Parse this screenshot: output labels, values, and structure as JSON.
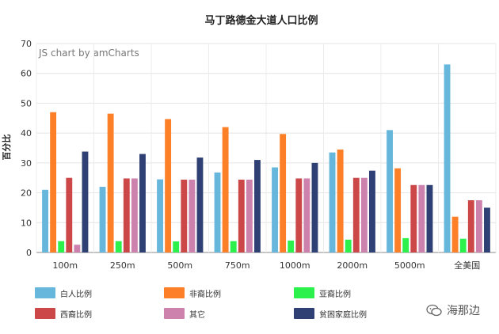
{
  "credit": "JS chart by amCharts",
  "watermark": "海那边",
  "chart_data": {
    "type": "bar",
    "title": "马丁路德金大道人口比例",
    "xlabel": "",
    "ylabel": "百分比",
    "ylim": [
      0,
      70
    ],
    "yticks": [
      0,
      10,
      20,
      30,
      40,
      50,
      60,
      70
    ],
    "grid": true,
    "legend_position": "bottom",
    "categories": [
      "100m",
      "250m",
      "500m",
      "750m",
      "1000m",
      "2000m",
      "5000m",
      "全美国"
    ],
    "series": [
      {
        "name": "白人比例",
        "color": "#67b7dc",
        "values": [
          21,
          22,
          24.5,
          26.8,
          28.5,
          33.5,
          41,
          63
        ]
      },
      {
        "name": "非裔比例",
        "color": "#fd7f28",
        "values": [
          47,
          46.5,
          44.7,
          42,
          39.7,
          34.5,
          28.2,
          12
        ]
      },
      {
        "name": "亚裔比例",
        "color": "#2cf04c",
        "values": [
          3.8,
          3.8,
          3.7,
          3.8,
          4,
          4.3,
          4.8,
          4.6
        ]
      },
      {
        "name": "西裔比例",
        "color": "#cc4748",
        "values": [
          25,
          24.8,
          24.4,
          24.4,
          24.8,
          25,
          22.6,
          17.5
        ]
      },
      {
        "name": "其它",
        "color": "#cd82ad",
        "values": [
          2.6,
          24.8,
          24.4,
          24.4,
          24.8,
          25,
          22.6,
          17.5
        ]
      },
      {
        "name": "贫困家庭比例",
        "color": "#2f4074",
        "values": [
          33.8,
          33,
          31.8,
          31,
          30,
          27.4,
          22.6,
          15
        ]
      }
    ]
  }
}
